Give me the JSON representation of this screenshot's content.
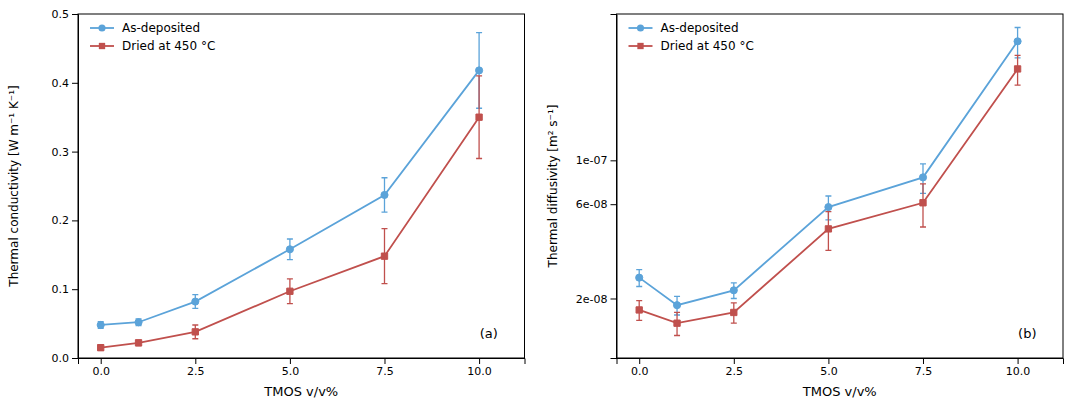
{
  "chart_data": [
    {
      "type": "line",
      "annotation": "(a)",
      "xlabel": "TMOS v/v%",
      "ylabel": "Thermal conductivity [W m⁻¹ K⁻¹]",
      "xlim": [
        -0.6,
        11.2
      ],
      "ylim": [
        0.0,
        0.5
      ],
      "xticks": [
        {
          "value": 0.0,
          "label": "0.0"
        },
        2.5,
        {
          "value": 5.0,
          "label": "5.0"
        },
        7.5,
        {
          "value": 10.0,
          "label": "10.0"
        }
      ],
      "yticks": [
        {
          "value": 0.0,
          "label": "0.0"
        },
        0.1,
        0.2,
        0.3,
        0.4,
        0.5
      ],
      "x": [
        0.0,
        1.0,
        2.5,
        5.0,
        7.5,
        10.0
      ],
      "series": [
        {
          "name": "As-deposited",
          "color": "#5BA3D9",
          "marker": "circle",
          "line_style": "solid",
          "values": [
            0.048,
            0.052,
            0.082,
            0.158,
            0.237,
            0.418
          ],
          "errors": [
            0.005,
            0.005,
            0.01,
            0.015,
            0.025,
            0.055
          ]
        },
        {
          "name": "Dried at 450 °C",
          "color": "#C0504D",
          "marker": "square",
          "line_style": "solid",
          "values": [
            0.015,
            0.022,
            0.038,
            0.097,
            0.148,
            0.35
          ],
          "errors": [
            0.004,
            0.004,
            0.01,
            0.018,
            0.04,
            0.06
          ]
        }
      ],
      "legend": "upper left",
      "grid": false
    },
    {
      "type": "line",
      "annotation": "(b)",
      "xlabel": "TMOS v/v%",
      "ylabel": "Thermal diffusivity [m² s⁻¹]",
      "log": "y",
      "xlim": [
        -0.6,
        11.2
      ],
      "ylim": [
        1e-08,
        5.5e-07
      ],
      "xticks": [
        {
          "value": 0.0,
          "label": "0.0"
        },
        2.5,
        {
          "value": 5.0,
          "label": "5.0"
        },
        7.5,
        {
          "value": 10.0,
          "label": "10.0"
        }
      ],
      "yticks": [
        {
          "value": 2e-08,
          "label": "2e-08"
        },
        {
          "value": 6e-08,
          "label": "6e-08"
        },
        {
          "value": 1e-07,
          "label": "1e-07"
        }
      ],
      "x": [
        0.0,
        1.0,
        2.5,
        5.0,
        7.5,
        10.0
      ],
      "series": [
        {
          "name": "As-deposited",
          "color": "#5BA3D9",
          "marker": "circle",
          "line_style": "solid",
          "values": [
            2.55e-08,
            1.85e-08,
            2.2e-08,
            5.8e-08,
            8.2e-08,
            4e-07
          ],
          "errors": [
            2.5e-09,
            2e-09,
            2e-09,
            8e-09,
            1.4e-08,
            7e-08
          ]
        },
        {
          "name": "Dried at 450 °C",
          "color": "#C0504D",
          "marker": "square",
          "line_style": "solid",
          "values": [
            1.75e-08,
            1.5e-08,
            1.7e-08,
            4.5e-08,
            6.1e-08,
            2.9e-07
          ],
          "errors": [
            2e-09,
            2e-09,
            2e-09,
            1e-08,
            1.5e-08,
            5e-08
          ]
        }
      ],
      "legend": "upper left",
      "grid": false
    }
  ]
}
